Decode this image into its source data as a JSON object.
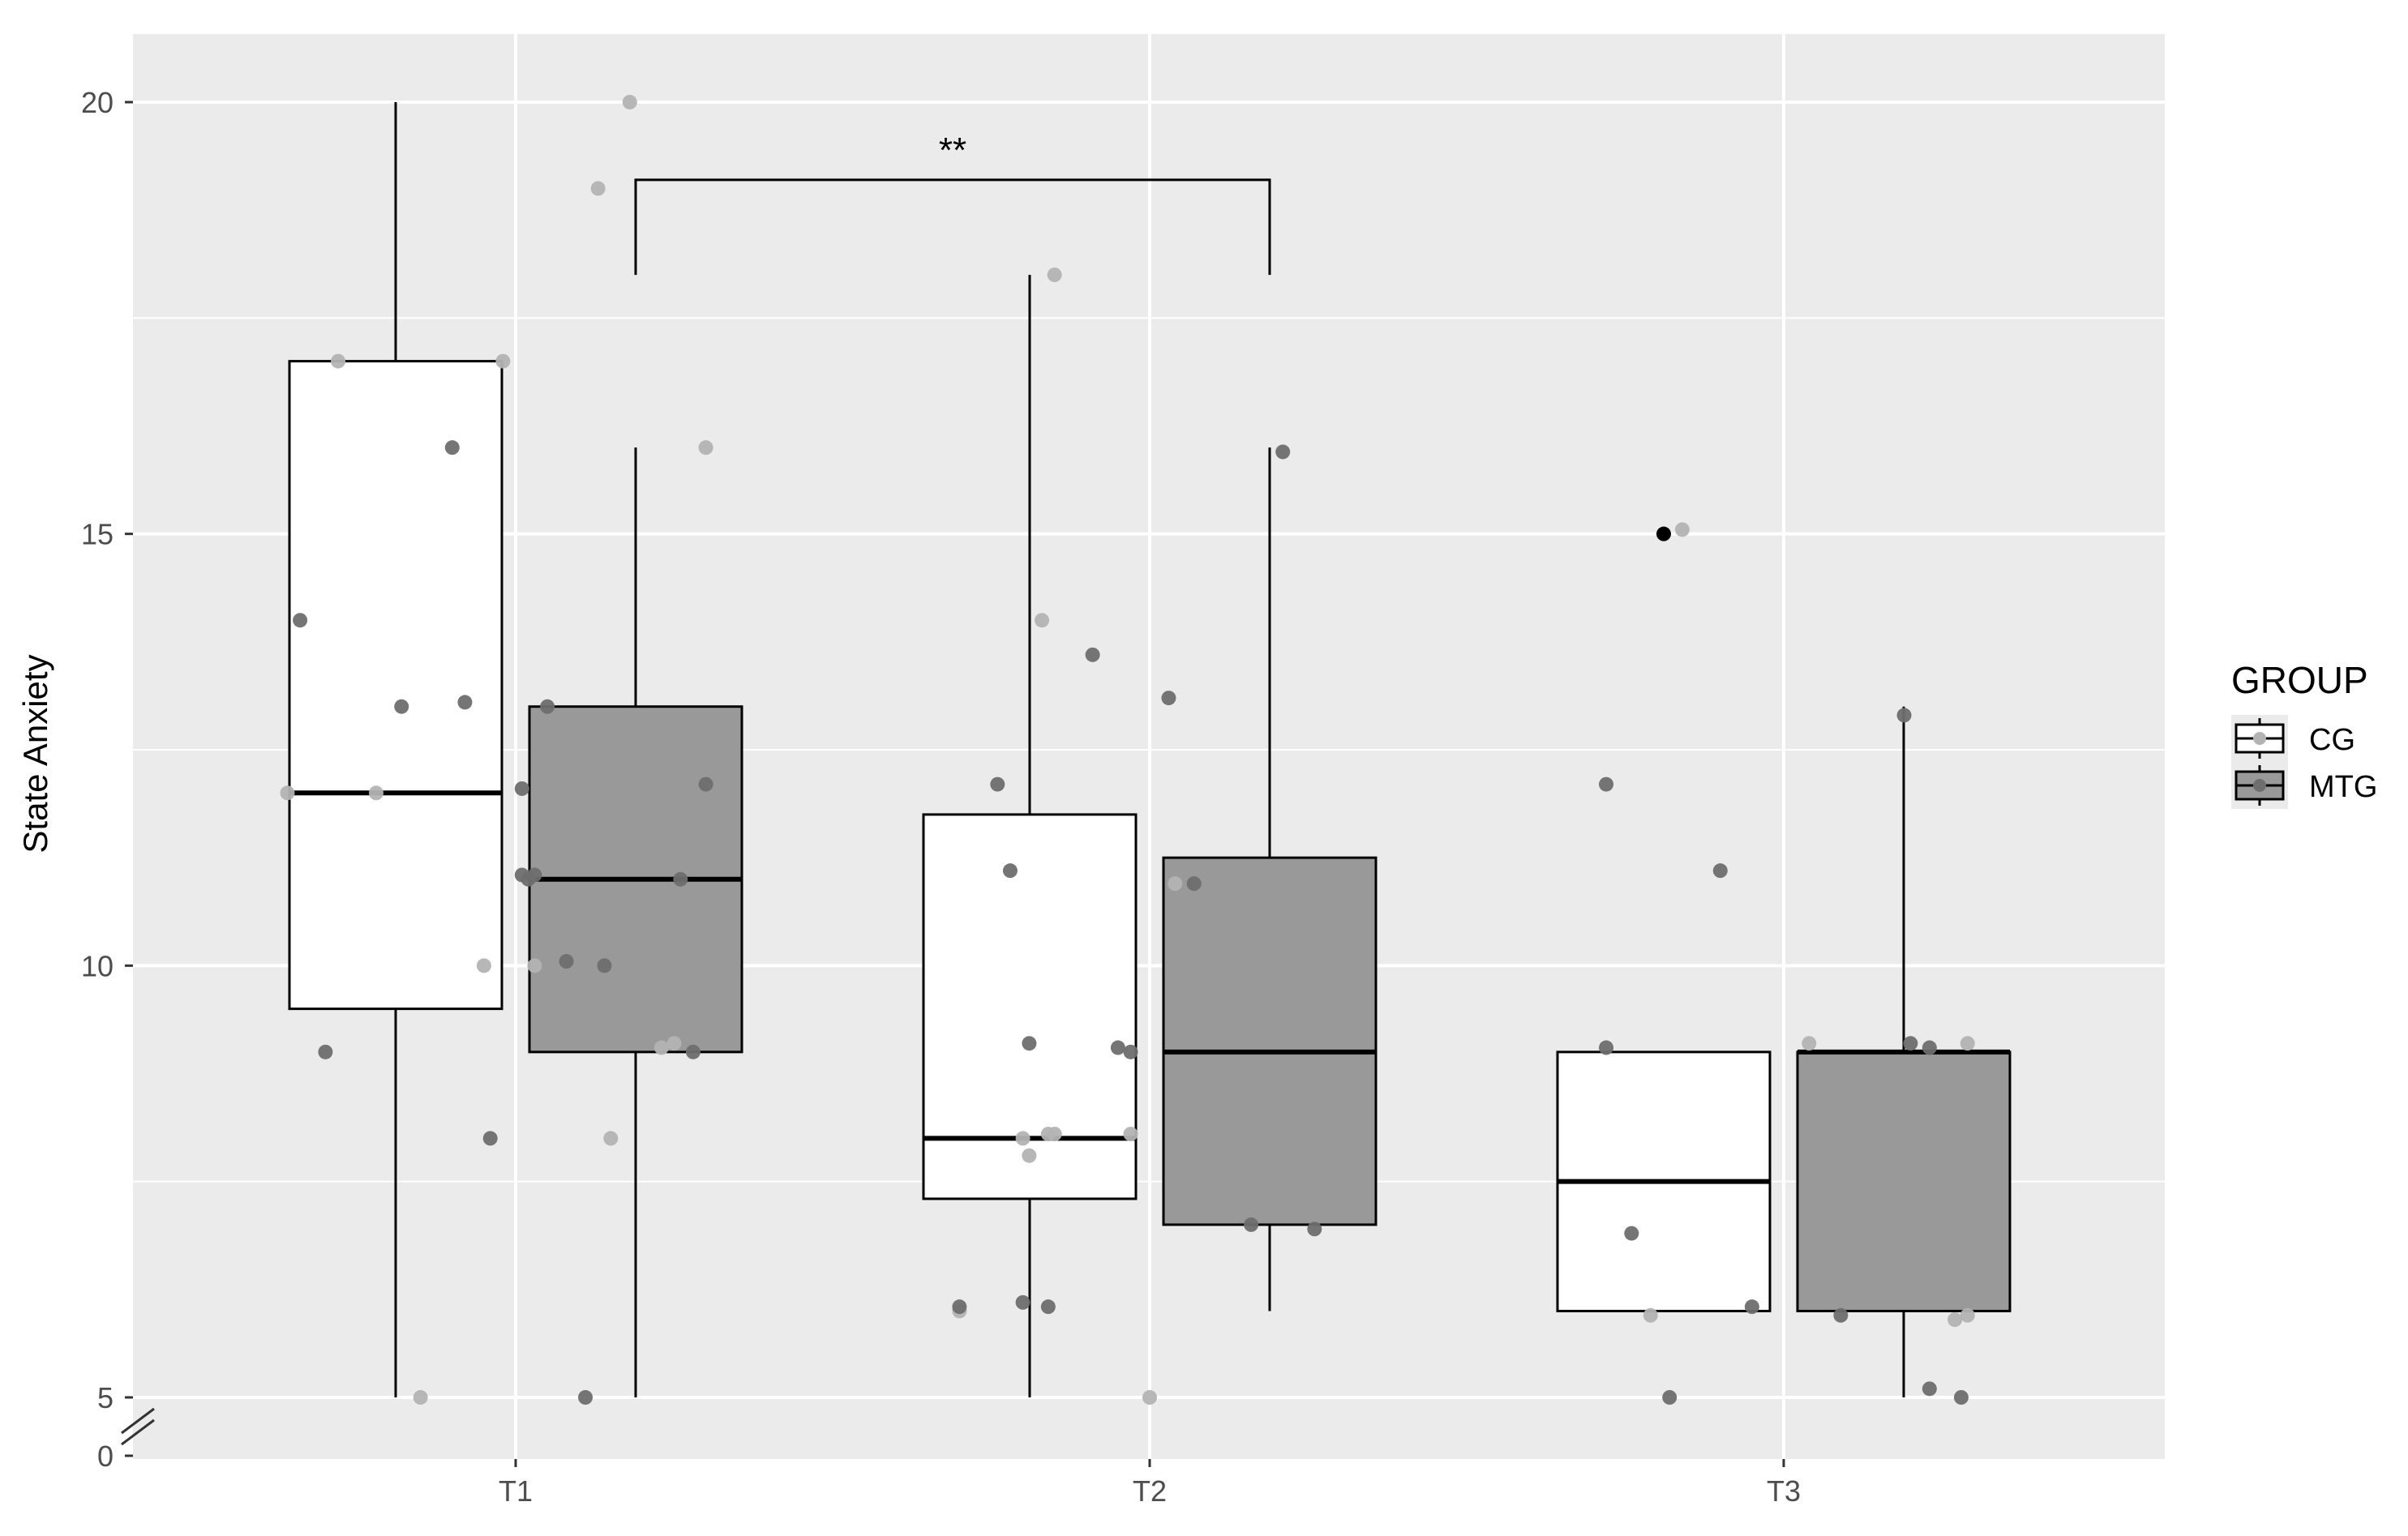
{
  "chart_data": {
    "type": "box",
    "title": "",
    "xlabel": "",
    "ylabel": "State Anxiety",
    "ylim": [
      5,
      20
    ],
    "axis_break": true,
    "y_ticks": [
      0,
      5,
      10,
      15,
      20
    ],
    "y_tick_labels": [
      "0",
      "5",
      "10",
      "15",
      "20"
    ],
    "categories": [
      "T1",
      "T2",
      "T3"
    ],
    "grid": true,
    "legend": {
      "title": "GROUP",
      "position": "right",
      "entries": [
        "CG",
        "MTG"
      ]
    },
    "colors": {
      "panel": "#ebebeb",
      "grid": "#ffffff",
      "CG": "#ffffff",
      "MTG": "#999999",
      "outline": "#000000"
    },
    "series": [
      {
        "name": "CG",
        "boxes": [
          {
            "category": "T1",
            "min": 5,
            "q1": 9.5,
            "median": 12,
            "q3": 17,
            "max": 20
          },
          {
            "category": "T2",
            "min": 5,
            "q1": 7.3,
            "median": 8,
            "q3": 11.75,
            "max": 18
          },
          {
            "category": "T3",
            "min": 6,
            "q1": 6,
            "median": 7.5,
            "q3": 9,
            "max": 9,
            "outliers": [
              15
            ]
          }
        ]
      },
      {
        "name": "MTG",
        "boxes": [
          {
            "category": "T1",
            "min": 5,
            "q1": 9,
            "median": 11,
            "q3": 13,
            "max": 16
          },
          {
            "category": "T2",
            "min": 6,
            "q1": 7,
            "median": 9,
            "q3": 11.25,
            "max": 16
          },
          {
            "category": "T3",
            "min": 5,
            "q1": 6,
            "median": 9,
            "q3": 9,
            "max": 13
          }
        ]
      }
    ],
    "jitter_points": [
      {
        "category": "T1",
        "dx": -0.34,
        "y": 14,
        "shade": "dark"
      },
      {
        "category": "T1",
        "dx": -0.28,
        "y": 17,
        "shade": "light"
      },
      {
        "category": "T1",
        "dx": -0.36,
        "y": 12,
        "shade": "light"
      },
      {
        "category": "T1",
        "dx": -0.3,
        "y": 9,
        "shade": "dark"
      },
      {
        "category": "T1",
        "dx": -0.22,
        "y": 12,
        "shade": "light"
      },
      {
        "category": "T1",
        "dx": -0.18,
        "y": 13,
        "shade": "dark"
      },
      {
        "category": "T1",
        "dx": -0.15,
        "y": 5,
        "shade": "light"
      },
      {
        "category": "T1",
        "dx": -0.1,
        "y": 16,
        "shade": "dark"
      },
      {
        "category": "T1",
        "dx": -0.08,
        "y": 13.05,
        "shade": "dark"
      },
      {
        "category": "T1",
        "dx": -0.05,
        "y": 10,
        "shade": "light"
      },
      {
        "category": "T1",
        "dx": -0.04,
        "y": 8,
        "shade": "dark"
      },
      {
        "category": "T1",
        "dx": -0.02,
        "y": 17,
        "shade": "light"
      },
      {
        "category": "T1",
        "dx": 0.01,
        "y": 12.05,
        "shade": "dark"
      },
      {
        "category": "T1",
        "dx": 0.02,
        "y": 11,
        "shade": "dark"
      },
      {
        "category": "T1",
        "dx": 0.03,
        "y": 10,
        "shade": "light"
      },
      {
        "category": "T1",
        "dx": 0.05,
        "y": 13,
        "shade": "dark"
      },
      {
        "category": "T1",
        "dx": 0.08,
        "y": 10.05,
        "shade": "dark"
      },
      {
        "category": "T1",
        "dx": 0.11,
        "y": 5,
        "shade": "dark"
      },
      {
        "category": "T1",
        "dx": 0.13,
        "y": 19,
        "shade": "light"
      },
      {
        "category": "T1",
        "dx": 0.14,
        "y": 10,
        "shade": "dark"
      },
      {
        "category": "T1",
        "dx": 0.15,
        "y": 8,
        "shade": "light"
      },
      {
        "category": "T1",
        "dx": 0.18,
        "y": 20,
        "shade": "light"
      },
      {
        "category": "T1",
        "dx": 0.23,
        "y": 9.05,
        "shade": "light"
      },
      {
        "category": "T1",
        "dx": 0.25,
        "y": 9.1,
        "shade": "light"
      },
      {
        "category": "T1",
        "dx": 0.26,
        "y": 11,
        "shade": "dark"
      },
      {
        "category": "T1",
        "dx": 0.28,
        "y": 9,
        "shade": "dark"
      },
      {
        "category": "T1",
        "dx": 0.3,
        "y": 12.1,
        "shade": "dark"
      },
      {
        "category": "T1",
        "dx": 0.3,
        "y": 16,
        "shade": "light"
      },
      {
        "category": "T1",
        "dx": 0.01,
        "y": 11.05,
        "shade": "dark"
      },
      {
        "category": "T1",
        "dx": 0.03,
        "y": 11.05,
        "shade": "dark"
      },
      {
        "category": "T2",
        "dx": -0.3,
        "y": 6,
        "shade": "light"
      },
      {
        "category": "T2",
        "dx": -0.3,
        "y": 6.05,
        "shade": "dark"
      },
      {
        "category": "T2",
        "dx": -0.24,
        "y": 12.1,
        "shade": "dark"
      },
      {
        "category": "T2",
        "dx": -0.22,
        "y": 11.1,
        "shade": "dark"
      },
      {
        "category": "T2",
        "dx": -0.2,
        "y": 6.1,
        "shade": "dark"
      },
      {
        "category": "T2",
        "dx": -0.2,
        "y": 8,
        "shade": "light"
      },
      {
        "category": "T2",
        "dx": -0.19,
        "y": 9.1,
        "shade": "dark"
      },
      {
        "category": "T2",
        "dx": -0.19,
        "y": 7.8,
        "shade": "light"
      },
      {
        "category": "T2",
        "dx": -0.17,
        "y": 14,
        "shade": "light"
      },
      {
        "category": "T2",
        "dx": -0.16,
        "y": 8.05,
        "shade": "light"
      },
      {
        "category": "T2",
        "dx": -0.16,
        "y": 6.05,
        "shade": "dark"
      },
      {
        "category": "T2",
        "dx": -0.15,
        "y": 8.05,
        "shade": "light"
      },
      {
        "category": "T2",
        "dx": -0.15,
        "y": 18,
        "shade": "light"
      },
      {
        "category": "T2",
        "dx": -0.09,
        "y": 13.6,
        "shade": "dark"
      },
      {
        "category": "T2",
        "dx": -0.05,
        "y": 9.05,
        "shade": "dark"
      },
      {
        "category": "T2",
        "dx": -0.03,
        "y": 8.05,
        "shade": "light"
      },
      {
        "category": "T2",
        "dx": -0.03,
        "y": 9,
        "shade": "dark"
      },
      {
        "category": "T2",
        "dx": 0.0,
        "y": 5,
        "shade": "light"
      },
      {
        "category": "T2",
        "dx": 0.03,
        "y": 13.1,
        "shade": "dark"
      },
      {
        "category": "T2",
        "dx": 0.04,
        "y": 10.95,
        "shade": "light"
      },
      {
        "category": "T2",
        "dx": 0.07,
        "y": 10.95,
        "shade": "dark"
      },
      {
        "category": "T2",
        "dx": 0.16,
        "y": 7,
        "shade": "dark"
      },
      {
        "category": "T2",
        "dx": 0.21,
        "y": 15.95,
        "shade": "dark"
      },
      {
        "category": "T2",
        "dx": 0.26,
        "y": 6.95,
        "shade": "dark"
      },
      {
        "category": "T3",
        "dx": -0.28,
        "y": 12.1,
        "shade": "dark"
      },
      {
        "category": "T3",
        "dx": -0.28,
        "y": 9.05,
        "shade": "dark"
      },
      {
        "category": "T3",
        "dx": -0.24,
        "y": 6.9,
        "shade": "dark"
      },
      {
        "category": "T3",
        "dx": -0.21,
        "y": 5.95,
        "shade": "light"
      },
      {
        "category": "T3",
        "dx": -0.18,
        "y": 5,
        "shade": "dark"
      },
      {
        "category": "T3",
        "dx": -0.16,
        "y": 15.05,
        "shade": "light"
      },
      {
        "category": "T3",
        "dx": -0.1,
        "y": 11.1,
        "shade": "dark"
      },
      {
        "category": "T3",
        "dx": -0.05,
        "y": 6.05,
        "shade": "dark"
      },
      {
        "category": "T3",
        "dx": 0.04,
        "y": 9.1,
        "shade": "light"
      },
      {
        "category": "T3",
        "dx": 0.09,
        "y": 5.95,
        "shade": "dark"
      },
      {
        "category": "T3",
        "dx": 0.19,
        "y": 12.9,
        "shade": "dark"
      },
      {
        "category": "T3",
        "dx": 0.2,
        "y": 9.1,
        "shade": "dark"
      },
      {
        "category": "T3",
        "dx": 0.23,
        "y": 9.05,
        "shade": "dark"
      },
      {
        "category": "T3",
        "dx": 0.23,
        "y": 5.1,
        "shade": "dark"
      },
      {
        "category": "T3",
        "dx": 0.27,
        "y": 5.9,
        "shade": "light"
      },
      {
        "category": "T3",
        "dx": 0.28,
        "y": 5,
        "shade": "dark"
      },
      {
        "category": "T3",
        "dx": 0.29,
        "y": 5.95,
        "shade": "light"
      },
      {
        "category": "T3",
        "dx": 0.29,
        "y": 9.1,
        "shade": "light"
      }
    ],
    "annotations": [
      {
        "type": "significance_bracket",
        "label": "**",
        "from": {
          "category": "T1",
          "group": "MTG"
        },
        "to": {
          "category": "T2",
          "group": "MTG"
        },
        "y": 19.1,
        "drop_to": 18
      }
    ]
  }
}
